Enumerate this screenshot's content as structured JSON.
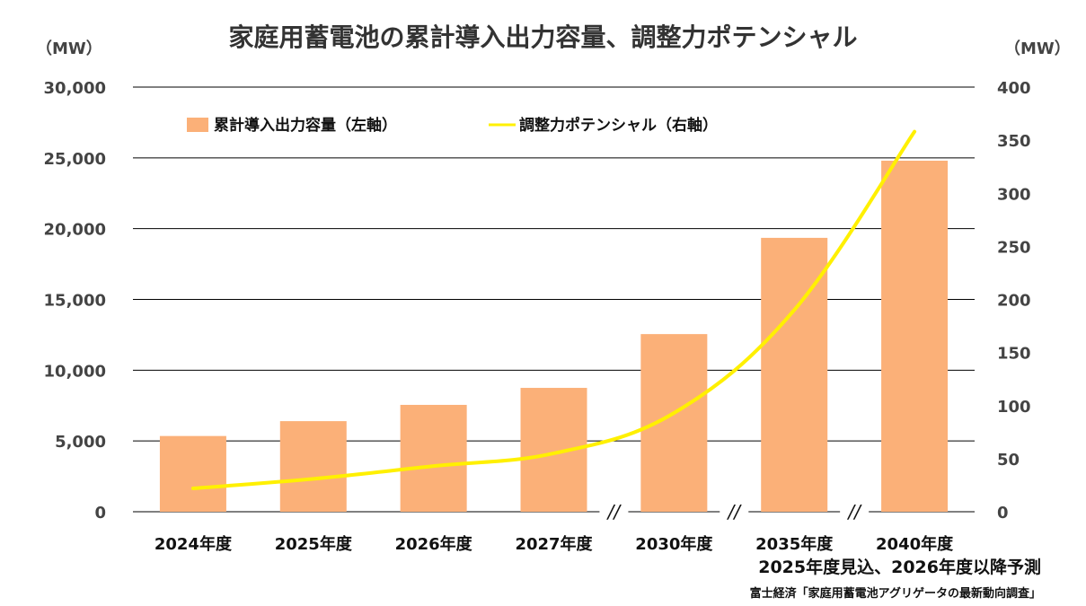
{
  "title": "家庭用蓄電池の累計導入出力容量、調整力ポテンシャル",
  "units": {
    "left": "（MW）",
    "right": "（MW）"
  },
  "colors": {
    "bar": "#FBB078",
    "line": "#FFF000",
    "grid": "#000000"
  },
  "legend": {
    "bar_label": "累計導入出力容量（左軸）",
    "line_label": "調整力ポテンシャル（右軸）"
  },
  "chart_data": {
    "type": "bar",
    "title": "家庭用蓄電池の累計導入出力容量、調整力ポテンシャル",
    "categories": [
      "2024年度",
      "2025年度",
      "2026年度",
      "2027年度",
      "2030年度",
      "2035年度",
      "2040年度"
    ],
    "series": [
      {
        "name": "累計導入出力容量（左軸）",
        "type": "bar",
        "axis": "left",
        "values": [
          5350,
          6400,
          7550,
          8750,
          12550,
          19350,
          24800
        ]
      },
      {
        "name": "調整力ポテンシャル（右軸）",
        "type": "line",
        "axis": "right",
        "values": [
          22,
          31,
          43,
          55,
          93,
          190,
          358
        ]
      }
    ],
    "y_left": {
      "min": 0,
      "max": 30000,
      "ticks": [
        "0",
        "5,000",
        "10,000",
        "15,000",
        "20,000",
        "25,000",
        "30,000"
      ]
    },
    "y_right": {
      "min": 0,
      "max": 400,
      "ticks": [
        "0",
        "50",
        "100",
        "150",
        "200",
        "250",
        "300",
        "350",
        "400"
      ]
    },
    "axis_breaks": [
      "//",
      "//",
      "//"
    ],
    "grid": true,
    "legend_position": "top-left"
  },
  "notes": {
    "forecast": "2025年度見込、2026年度以降予測",
    "source": "富士経済「家庭用蓄電池アグリゲータの最新動向調査」"
  }
}
